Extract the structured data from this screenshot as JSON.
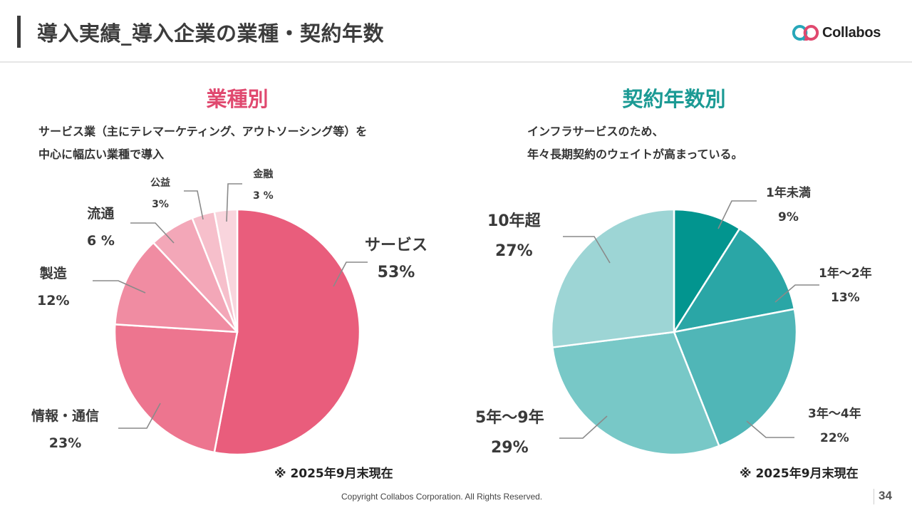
{
  "header": {
    "title": "導入実績_導入企業の業種・契約年数",
    "logo_text": "Collabos",
    "logo_icon": "collabos-speech-bubbles-logo-icon"
  },
  "colors": {
    "industry_accent": "#e0496f",
    "contract_accent": "#1b9a94",
    "leader_line": "#8a8a8a"
  },
  "left": {
    "section_title": "業種別",
    "description_line1": "サービス業（主にテレマーケティング、アウトソーシング等）を",
    "description_line2": "中心に幅広い業種で導入",
    "note": "※ 2025年9月末現在"
  },
  "right": {
    "section_title": "契約年数別",
    "description_line1": "インフラサービスのため、",
    "description_line2": "年々長期契約のウェイトが高まっている。",
    "note": "※ 2025年9月末現在"
  },
  "footer": {
    "copyright": "Copyright Collabos Corporation. All Rights Reserved.",
    "page_number": "34"
  },
  "chart_data": [
    {
      "type": "pie",
      "title": "業種別",
      "start": "top",
      "direction": "clockwise",
      "categories": [
        "サービス",
        "情報・通信",
        "製造",
        "流通",
        "公益",
        "金融"
      ],
      "values": [
        53,
        23,
        12,
        6,
        3,
        3
      ],
      "value_labels": [
        "53%",
        "23%",
        "12%",
        "6 %",
        "3%",
        "3 %"
      ],
      "unit": "%",
      "colors": [
        "#e95d7c",
        "#ed758f",
        "#f08ca2",
        "#f3a7b8",
        "#f6bfcb",
        "#f9d5dd"
      ]
    },
    {
      "type": "pie",
      "title": "契約年数別",
      "start": "top",
      "direction": "clockwise",
      "categories": [
        "1年未満",
        "1年～2年",
        "3年～4年",
        "5年～9年",
        "10年超"
      ],
      "values": [
        9,
        13,
        22,
        29,
        27
      ],
      "value_labels": [
        "9%",
        "13%",
        "22%",
        "29%",
        "27%"
      ],
      "unit": "%",
      "colors": [
        "#02958f",
        "#2aa6a6",
        "#50b6b7",
        "#78c8c7",
        "#9dd5d5"
      ]
    }
  ]
}
